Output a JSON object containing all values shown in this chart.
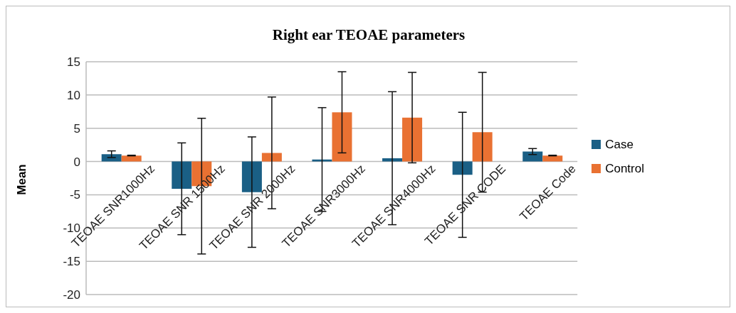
{
  "chart_data": {
    "type": "bar",
    "title": "Right ear TEOAE parameters",
    "ylabel": "Mean",
    "categories": [
      "TEOAE SNR1000Hz",
      "TEOAE SNR 1500Hz",
      "TEOAE SNR 2000Hz",
      "TEOAE SNR3000Hz",
      "TEOAE SNR4000Hz",
      "TEOAE SNR CODE",
      "TEOAE Code"
    ],
    "series": [
      {
        "name": "Case",
        "color": "#1a5f85",
        "values": [
          1.1,
          -4.1,
          -4.6,
          0.3,
          0.5,
          -2.0,
          1.5
        ],
        "errors": [
          0.5,
          6.9,
          8.3,
          7.8,
          10.0,
          9.4,
          0.45
        ]
      },
      {
        "name": "Control",
        "color": "#e97132",
        "values": [
          0.9,
          -3.7,
          1.3,
          7.4,
          6.6,
          4.4,
          0.9
        ],
        "errors": [
          0.05,
          10.2,
          8.4,
          6.1,
          6.8,
          9.0,
          0.05
        ]
      }
    ],
    "ylim": [
      -20,
      15
    ],
    "yticks": [
      -20,
      -15,
      -10,
      -5,
      0,
      5,
      10,
      15
    ],
    "grid": "y",
    "legend": "right"
  }
}
